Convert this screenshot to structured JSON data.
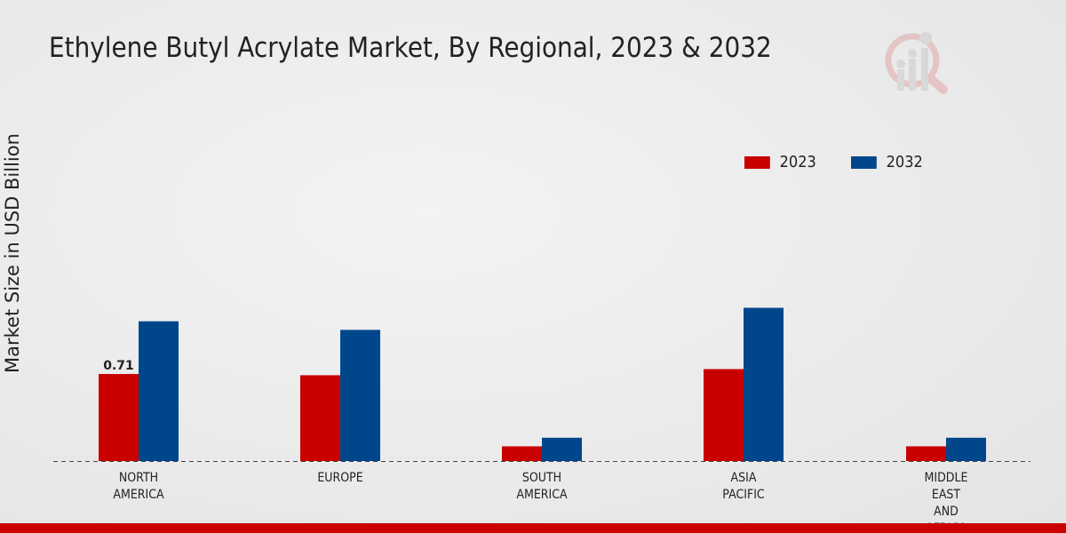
{
  "chart_data": {
    "type": "bar",
    "title": "Ethylene Butyl Acrylate Market, By Regional, 2023 & 2032",
    "xlabel": "",
    "ylabel": "Market Size in USD Billion",
    "categories": [
      [
        "NORTH",
        "AMERICA"
      ],
      [
        "EUROPE"
      ],
      [
        "SOUTH",
        "AMERICA"
      ],
      [
        "ASIA",
        "PACIFIC"
      ],
      [
        "MIDDLE",
        "EAST",
        "AND",
        "AFRICA"
      ]
    ],
    "series": [
      {
        "name": "2023",
        "color": "#c80000",
        "values": [
          0.71,
          0.7,
          0.12,
          0.75,
          0.12
        ]
      },
      {
        "name": "2032",
        "color": "#00468b",
        "values": [
          1.14,
          1.07,
          0.19,
          1.25,
          0.19
        ]
      }
    ],
    "data_labels": [
      {
        "series": 0,
        "index": 0,
        "text": "0.71"
      }
    ],
    "ylim": [
      0,
      2.9
    ],
    "grid": false,
    "legend": "top-right"
  }
}
